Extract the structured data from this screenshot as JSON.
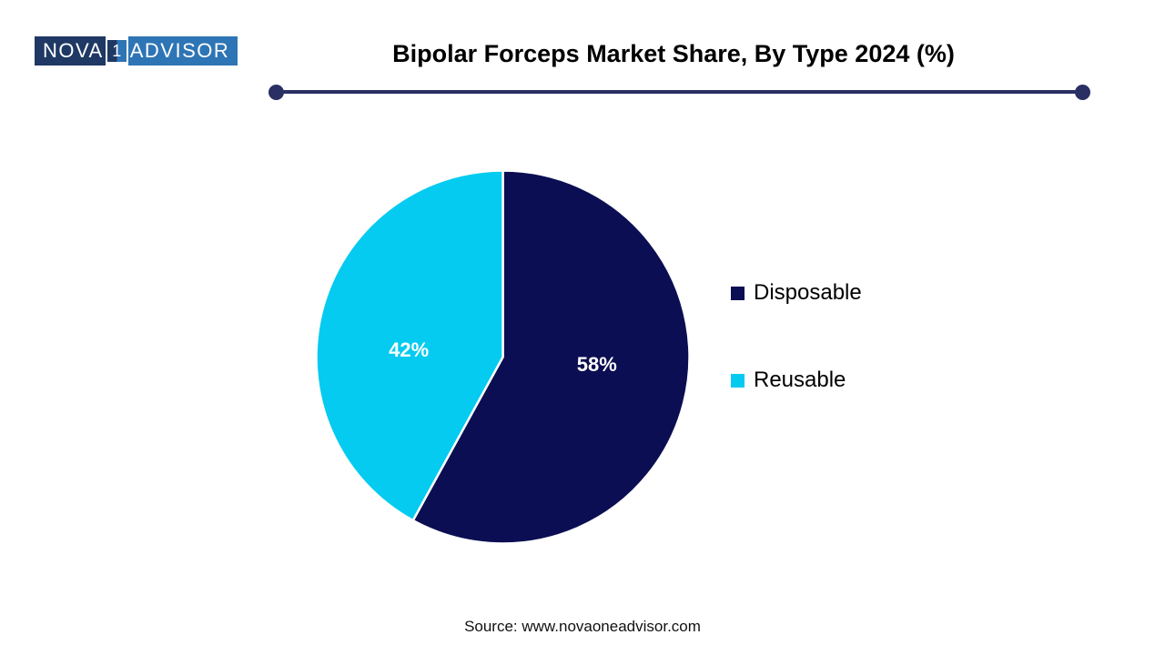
{
  "logo": {
    "part1": "NOVA",
    "number": "1",
    "part2": "ADVISOR",
    "dark_bg": "#1F3864",
    "light_bg": "#2E75B6"
  },
  "header": {
    "title": "Bipolar Forceps Market Share, By Type 2024 (%)"
  },
  "divider_color": "#2A3064",
  "chart_data": {
    "type": "pie",
    "title": "Bipolar Forceps Market Share, By Type 2024 (%)",
    "slices": [
      {
        "label": "Disposable",
        "value": 58,
        "data_label": "58%",
        "color": "#0B0E52"
      },
      {
        "label": "Reusable",
        "value": 42,
        "data_label": "42%",
        "color": "#05CBF0"
      }
    ],
    "start_angle_deg": 0,
    "direction": "clockwise",
    "slice_border_color": "#FFFFFF",
    "data_label_color": "#FFFFFF",
    "legend_position": "right"
  },
  "footer": {
    "source": "Source: www.novaoneadvisor.com"
  }
}
